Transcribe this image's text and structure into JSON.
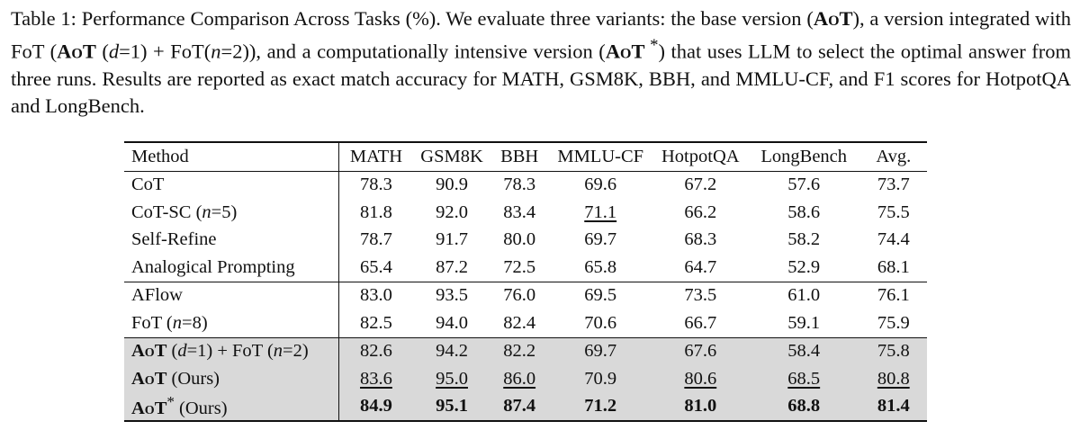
{
  "caption": {
    "t1": "Table 1: Performance Comparison Across Tasks (%). We evaluate three variants: the base version (",
    "aot1": "AoT",
    "t2": "), a version integrated with FoT (",
    "aot2": "AoT",
    "t3": " (",
    "d1": "d",
    "t4": "=1) + FoT(",
    "n1": "n",
    "t5": "=2)), and a computationally intensive version (",
    "aot3": "AoT",
    "star": " *",
    "t6": ") that uses LLM to select the optimal answer from three runs. Results are reported as exact match accuracy for MATH, GSM8K, BBH, and MMLU-CF, and F1 scores for HotpotQA and LongBench."
  },
  "table": {
    "headers": [
      "Method",
      "MATH",
      "GSM8K",
      "BBH",
      "MMLU-CF",
      "HotpotQA",
      "LongBench",
      "Avg."
    ],
    "rows": [
      {
        "method": "CoT",
        "values": [
          "78.3",
          "90.9",
          "78.3",
          "69.6",
          "67.2",
          "57.6",
          "73.7"
        ]
      },
      {
        "method_pre": "CoT-SC (",
        "method_var": "n",
        "method_post": "=5)",
        "values": [
          "81.8",
          "92.0",
          "83.4",
          "71.1",
          "66.2",
          "58.6",
          "75.5"
        ]
      },
      {
        "method": "Self-Refine",
        "values": [
          "78.7",
          "91.7",
          "80.0",
          "69.7",
          "68.3",
          "58.2",
          "74.4"
        ]
      },
      {
        "method": "Analogical Prompting",
        "values": [
          "65.4",
          "87.2",
          "72.5",
          "65.8",
          "64.7",
          "52.9",
          "68.1"
        ]
      },
      {
        "method": "AFlow",
        "values": [
          "83.0",
          "93.5",
          "76.0",
          "69.5",
          "73.5",
          "61.0",
          "76.1"
        ]
      },
      {
        "method_pre": "FoT (",
        "method_var": "n",
        "method_post": "=8)",
        "values": [
          "82.5",
          "94.0",
          "82.4",
          "70.6",
          "66.7",
          "59.1",
          "75.9"
        ]
      },
      {
        "m_aot": "AoT",
        "m_a": " (",
        "m_d": "d",
        "m_b": "=1) + FoT (",
        "m_n": "n",
        "m_c": "=2)",
        "values": [
          "82.6",
          "94.2",
          "82.2",
          "69.7",
          "67.6",
          "58.4",
          "75.8"
        ]
      },
      {
        "m_aot": "AoT",
        "m_rest": " (Ours)",
        "values": [
          "83.6",
          "95.0",
          "86.0",
          "70.9",
          "80.6",
          "68.5",
          "80.8"
        ]
      },
      {
        "m_aot": "AoT",
        "m_star": "*",
        "m_rest": " (Ours)",
        "values": [
          "84.9",
          "95.1",
          "87.4",
          "71.2",
          "81.0",
          "68.8",
          "81.4"
        ]
      }
    ]
  }
}
